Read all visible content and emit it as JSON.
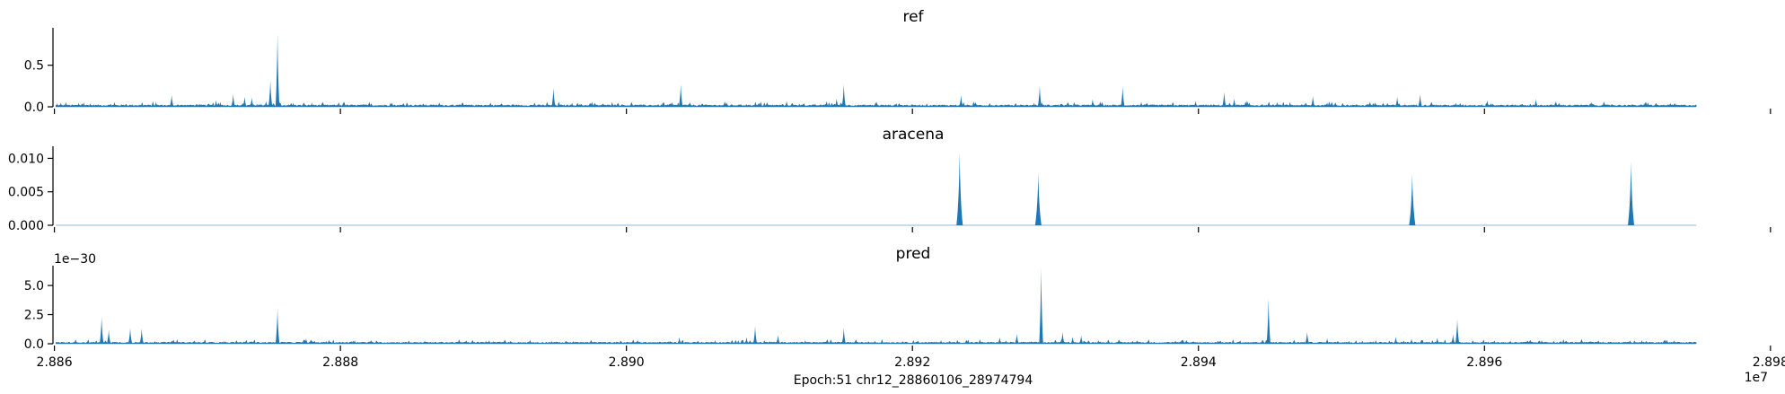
{
  "chart_data": [
    {
      "type": "area",
      "title": "ref",
      "ylim": [
        0,
        0.95
      ],
      "yticks": [
        0.0,
        0.5
      ],
      "ytick_labels": [
        "0.0",
        "0.5"
      ],
      "baseline": 0.02,
      "color": "#1f77b4",
      "peaks": [
        {
          "x": 28860200,
          "y": 0.04
        },
        {
          "x": 28860450,
          "y": 0.05
        },
        {
          "x": 28860800,
          "y": 0.06
        },
        {
          "x": 28861700,
          "y": 0.05
        },
        {
          "x": 28862500,
          "y": 0.04
        },
        {
          "x": 28864200,
          "y": 0.06
        },
        {
          "x": 28867100,
          "y": 0.06
        },
        {
          "x": 28868200,
          "y": 0.14
        },
        {
          "x": 28871300,
          "y": 0.08
        },
        {
          "x": 28871600,
          "y": 0.06
        },
        {
          "x": 28872500,
          "y": 0.15
        },
        {
          "x": 28873300,
          "y": 0.12
        },
        {
          "x": 28873800,
          "y": 0.11
        },
        {
          "x": 28874800,
          "y": 0.07
        },
        {
          "x": 28875100,
          "y": 0.32
        },
        {
          "x": 28875600,
          "y": 0.88
        },
        {
          "x": 28876700,
          "y": 0.05
        },
        {
          "x": 28878000,
          "y": 0.05
        },
        {
          "x": 28880200,
          "y": 0.06
        },
        {
          "x": 28883500,
          "y": 0.05
        },
        {
          "x": 28888500,
          "y": 0.05
        },
        {
          "x": 28894900,
          "y": 0.23
        },
        {
          "x": 28896200,
          "y": 0.05
        },
        {
          "x": 28899000,
          "y": 0.06
        },
        {
          "x": 28903800,
          "y": 0.27
        },
        {
          "x": 28907000,
          "y": 0.05
        },
        {
          "x": 28911200,
          "y": 0.07
        },
        {
          "x": 28914000,
          "y": 0.07
        },
        {
          "x": 28914700,
          "y": 0.1
        },
        {
          "x": 28915200,
          "y": 0.27
        },
        {
          "x": 28917500,
          "y": 0.06
        },
        {
          "x": 28921000,
          "y": 0.04
        },
        {
          "x": 28923400,
          "y": 0.14
        },
        {
          "x": 28924400,
          "y": 0.05
        },
        {
          "x": 28928500,
          "y": 0.05
        },
        {
          "x": 28928900,
          "y": 0.25
        },
        {
          "x": 28932600,
          "y": 0.09
        },
        {
          "x": 28934700,
          "y": 0.24
        },
        {
          "x": 28936000,
          "y": 0.06
        },
        {
          "x": 28939800,
          "y": 0.07
        },
        {
          "x": 28941800,
          "y": 0.18
        },
        {
          "x": 28942500,
          "y": 0.1
        },
        {
          "x": 28943400,
          "y": 0.08
        },
        {
          "x": 28945500,
          "y": 0.06
        },
        {
          "x": 28946400,
          "y": 0.06
        },
        {
          "x": 28948000,
          "y": 0.13
        },
        {
          "x": 28949000,
          "y": 0.05
        },
        {
          "x": 28952000,
          "y": 0.06
        },
        {
          "x": 28953900,
          "y": 0.12
        },
        {
          "x": 28955500,
          "y": 0.15
        },
        {
          "x": 28958000,
          "y": 0.05
        },
        {
          "x": 28960200,
          "y": 0.08
        },
        {
          "x": 28963600,
          "y": 0.09
        },
        {
          "x": 28965000,
          "y": 0.07
        },
        {
          "x": 28967500,
          "y": 0.06
        },
        {
          "x": 28971300,
          "y": 0.06
        }
      ]
    },
    {
      "type": "area",
      "title": "aracena",
      "ylim": [
        0,
        0.0118
      ],
      "yticks": [
        0.0,
        0.005,
        0.01
      ],
      "ytick_labels": [
        "0.000",
        "0.005",
        "0.010"
      ],
      "baseline": 0,
      "color": "#1f77b4",
      "peaks": [
        {
          "x": 28923300,
          "y": 0.0109
        },
        {
          "x": 28928800,
          "y": 0.0079
        },
        {
          "x": 28954950,
          "y": 0.0077
        },
        {
          "x": 28970250,
          "y": 0.0095
        }
      ]
    },
    {
      "type": "area",
      "title": "pred",
      "ylim": [
        0,
        6.7
      ],
      "yticks": [
        0.0,
        2.5,
        5.0
      ],
      "ytick_labels": [
        "0.0",
        "2.5",
        "5.0"
      ],
      "offset_label": "1e−30",
      "baseline": 0.12,
      "color": "#1f77b4",
      "peaks": [
        {
          "x": 28863300,
          "y": 2.3
        },
        {
          "x": 28863800,
          "y": 1.2
        },
        {
          "x": 28865300,
          "y": 1.35
        },
        {
          "x": 28866100,
          "y": 1.3
        },
        {
          "x": 28875600,
          "y": 3.0
        },
        {
          "x": 28877600,
          "y": 0.45
        },
        {
          "x": 28881000,
          "y": 0.3
        },
        {
          "x": 28890400,
          "y": 0.3
        },
        {
          "x": 28903700,
          "y": 0.55
        },
        {
          "x": 28906200,
          "y": 0.3
        },
        {
          "x": 28908400,
          "y": 0.55
        },
        {
          "x": 28909000,
          "y": 1.5
        },
        {
          "x": 28910600,
          "y": 0.75
        },
        {
          "x": 28912500,
          "y": 0.3
        },
        {
          "x": 28915200,
          "y": 1.35
        },
        {
          "x": 28922000,
          "y": 0.3
        },
        {
          "x": 28926100,
          "y": 0.55
        },
        {
          "x": 28927300,
          "y": 0.85
        },
        {
          "x": 28929000,
          "y": 6.5
        },
        {
          "x": 28930500,
          "y": 1.0
        },
        {
          "x": 28931200,
          "y": 0.6
        },
        {
          "x": 28931800,
          "y": 0.7
        },
        {
          "x": 28933000,
          "y": 0.3
        },
        {
          "x": 28936500,
          "y": 0.3
        },
        {
          "x": 28944900,
          "y": 3.9
        },
        {
          "x": 28947600,
          "y": 1.0
        },
        {
          "x": 28949000,
          "y": 0.45
        },
        {
          "x": 28952400,
          "y": 0.3
        },
        {
          "x": 28953800,
          "y": 0.6
        },
        {
          "x": 28954900,
          "y": 0.4
        },
        {
          "x": 28956700,
          "y": 0.5
        },
        {
          "x": 28957800,
          "y": 0.8
        },
        {
          "x": 28958100,
          "y": 2.1
        },
        {
          "x": 28964000,
          "y": 0.3
        },
        {
          "x": 28966800,
          "y": 0.4
        },
        {
          "x": 28971000,
          "y": 0.3
        }
      ]
    }
  ],
  "x_axis": {
    "xlim": [
      28859900,
      28980200
    ],
    "data_range": [
      28860106,
      28974794
    ],
    "ticks": [
      28860000,
      28880000,
      28900000,
      28920000,
      28940000,
      28960000,
      28980000
    ],
    "tick_labels": [
      "2.886",
      "2.888",
      "2.890",
      "2.892",
      "2.894",
      "2.896",
      "2.898"
    ],
    "offset_label": "1e7",
    "xlabel": "Epoch:51 chr12_28860106_28974794"
  }
}
